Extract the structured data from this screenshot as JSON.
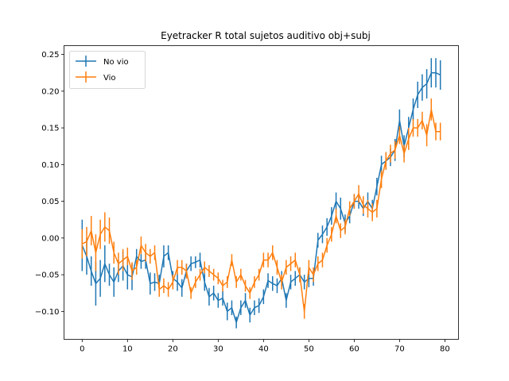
{
  "chart_data": {
    "type": "line",
    "title": "Eyetracker R total sujetos auditivo obj+subj",
    "xlabel": "",
    "ylabel": "",
    "xlim": [
      -4,
      83
    ],
    "ylim": [
      -0.138,
      0.262
    ],
    "xticks": [
      0,
      10,
      20,
      30,
      40,
      50,
      60,
      70,
      80
    ],
    "yticks": [
      -0.1,
      -0.05,
      0.0,
      0.05,
      0.1,
      0.15,
      0.2,
      0.25
    ],
    "ytick_labels": [
      "−0.10",
      "−0.05",
      "0.00",
      "0.05",
      "0.10",
      "0.15",
      "0.20",
      "0.25"
    ],
    "grid": false,
    "legend_position": "upper-left",
    "series": [
      {
        "name": "No vio",
        "color": "#1f77b4",
        "values": [
          -0.01,
          -0.025,
          -0.045,
          -0.062,
          -0.055,
          -0.035,
          -0.05,
          -0.06,
          -0.045,
          -0.038,
          -0.05,
          -0.053,
          -0.025,
          -0.032,
          -0.03,
          -0.062,
          -0.06,
          -0.062,
          -0.025,
          -0.02,
          -0.055,
          -0.06,
          -0.068,
          -0.045,
          -0.035,
          -0.033,
          -0.03,
          -0.06,
          -0.08,
          -0.075,
          -0.085,
          -0.082,
          -0.1,
          -0.095,
          -0.115,
          -0.095,
          -0.085,
          -0.105,
          -0.095,
          -0.092,
          -0.08,
          -0.058,
          -0.062,
          -0.065,
          -0.055,
          -0.085,
          -0.06,
          -0.055,
          -0.05,
          -0.06,
          -0.055,
          -0.055,
          -0.003,
          0.005,
          0.015,
          0.03,
          0.05,
          0.04,
          0.02,
          0.03,
          0.05,
          0.05,
          0.04,
          0.05,
          0.04,
          0.07,
          0.1,
          0.105,
          0.11,
          0.12,
          0.16,
          0.125,
          0.15,
          0.175,
          0.195,
          0.205,
          0.21,
          0.225,
          0.225,
          0.222
        ],
        "errors": [
          0.035,
          0.025,
          0.02,
          0.03,
          0.025,
          0.025,
          0.015,
          0.02,
          0.015,
          0.02,
          0.02,
          0.018,
          0.01,
          0.01,
          0.012,
          0.015,
          0.012,
          0.012,
          0.015,
          0.01,
          0.01,
          0.012,
          0.012,
          0.01,
          0.01,
          0.008,
          0.01,
          0.012,
          0.012,
          0.01,
          0.01,
          0.01,
          0.012,
          0.01,
          0.008,
          0.01,
          0.01,
          0.01,
          0.01,
          0.01,
          0.01,
          0.01,
          0.01,
          0.01,
          0.01,
          0.01,
          0.01,
          0.01,
          0.01,
          0.01,
          0.012,
          0.01,
          0.01,
          0.012,
          0.012,
          0.012,
          0.012,
          0.015,
          0.012,
          0.01,
          0.01,
          0.01,
          0.01,
          0.012,
          0.012,
          0.012,
          0.012,
          0.012,
          0.012,
          0.015,
          0.015,
          0.015,
          0.015,
          0.015,
          0.018,
          0.018,
          0.02,
          0.02,
          0.02,
          0.02
        ]
      },
      {
        "name": "Vio",
        "color": "#ff7f0e",
        "values": [
          -0.008,
          -0.005,
          0.01,
          -0.02,
          0.005,
          0.015,
          0.01,
          -0.02,
          -0.035,
          -0.03,
          -0.025,
          -0.045,
          -0.04,
          -0.01,
          -0.02,
          -0.025,
          -0.02,
          -0.07,
          -0.065,
          -0.07,
          -0.06,
          -0.04,
          -0.04,
          -0.045,
          -0.075,
          -0.06,
          -0.05,
          -0.04,
          -0.045,
          -0.05,
          -0.055,
          -0.065,
          -0.06,
          -0.03,
          -0.06,
          -0.05,
          -0.065,
          -0.075,
          -0.06,
          -0.05,
          -0.03,
          -0.03,
          -0.02,
          -0.04,
          -0.06,
          -0.04,
          -0.035,
          -0.03,
          -0.05,
          -0.1,
          -0.04,
          -0.05,
          -0.035,
          -0.03,
          -0.01,
          0.005,
          0.03,
          0.01,
          0.015,
          0.04,
          0.05,
          0.06,
          0.045,
          0.04,
          0.035,
          0.04,
          0.08,
          0.105,
          0.115,
          0.12,
          0.14,
          0.115,
          0.135,
          0.15,
          0.15,
          0.16,
          0.14,
          0.175,
          0.145,
          0.145
        ],
        "errors": [
          0.02,
          0.02,
          0.02,
          0.025,
          0.02,
          0.02,
          0.018,
          0.015,
          0.015,
          0.015,
          0.012,
          0.012,
          0.01,
          0.012,
          0.012,
          0.01,
          0.01,
          0.01,
          0.01,
          0.01,
          0.01,
          0.01,
          0.01,
          0.01,
          0.008,
          0.008,
          0.008,
          0.008,
          0.008,
          0.008,
          0.008,
          0.008,
          0.008,
          0.008,
          0.008,
          0.008,
          0.008,
          0.008,
          0.008,
          0.008,
          0.01,
          0.01,
          0.01,
          0.01,
          0.01,
          0.01,
          0.01,
          0.01,
          0.01,
          0.01,
          0.01,
          0.01,
          0.01,
          0.01,
          0.01,
          0.01,
          0.01,
          0.01,
          0.01,
          0.01,
          0.01,
          0.012,
          0.012,
          0.012,
          0.012,
          0.012,
          0.012,
          0.012,
          0.012,
          0.012,
          0.012,
          0.012,
          0.015,
          0.012,
          0.012,
          0.012,
          0.015,
          0.015,
          0.012,
          0.012
        ]
      }
    ]
  }
}
